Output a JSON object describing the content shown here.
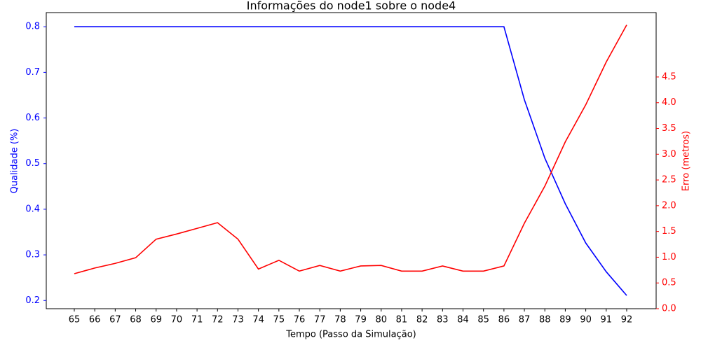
{
  "chart_data": {
    "type": "line",
    "title": "Informações do node1 sobre o node4",
    "xlabel": "Tempo (Passo da Simulação)",
    "ylabel": "Qualidade (%)",
    "y2label": "Erro (metros)",
    "x": [
      65,
      66,
      67,
      68,
      69,
      70,
      71,
      72,
      73,
      74,
      75,
      76,
      77,
      78,
      79,
      80,
      81,
      82,
      83,
      84,
      85,
      86,
      87,
      88,
      89,
      90,
      91,
      92
    ],
    "series": [
      {
        "color": "#0000ff",
        "axis": "y",
        "values": [
          0.8,
          0.8,
          0.8,
          0.8,
          0.8,
          0.8,
          0.8,
          0.8,
          0.8,
          0.8,
          0.8,
          0.8,
          0.8,
          0.8,
          0.8,
          0.8,
          0.8,
          0.8,
          0.8,
          0.8,
          0.8,
          0.8,
          0.64,
          0.512,
          0.412,
          0.326,
          0.263,
          0.211
        ]
      },
      {
        "color": "#ff0000",
        "axis": "y2",
        "values": [
          0.68,
          0.79,
          0.88,
          0.99,
          1.35,
          1.45,
          1.56,
          1.67,
          1.35,
          0.77,
          0.94,
          0.73,
          0.84,
          0.73,
          0.83,
          0.84,
          0.73,
          0.73,
          0.83,
          0.73,
          0.73,
          0.83,
          1.66,
          2.38,
          3.24,
          3.96,
          4.79,
          5.51
        ]
      }
    ],
    "xlim": [
      63.63,
      93.44
    ],
    "xticks": [
      65,
      66,
      67,
      68,
      69,
      70,
      71,
      72,
      73,
      74,
      75,
      76,
      77,
      78,
      79,
      80,
      81,
      82,
      83,
      84,
      85,
      86,
      87,
      88,
      89,
      90,
      91,
      92
    ],
    "ylim": [
      0.182,
      0.831
    ],
    "yticks": [
      0.2,
      0.3,
      0.4,
      0.5,
      0.6,
      0.7,
      0.8
    ],
    "y2lim": [
      0,
      5.75
    ],
    "y2ticks": [
      {
        "value": 0,
        "label": "0.0"
      },
      0.5,
      {
        "value": 1,
        "label": "1.0"
      },
      1.5,
      {
        "value": 2,
        "label": "2.0"
      },
      2.5,
      {
        "value": 3,
        "label": "3.0"
      },
      3.5,
      {
        "value": 4,
        "label": "4.0"
      },
      4.5
    ],
    "grid": false
  }
}
